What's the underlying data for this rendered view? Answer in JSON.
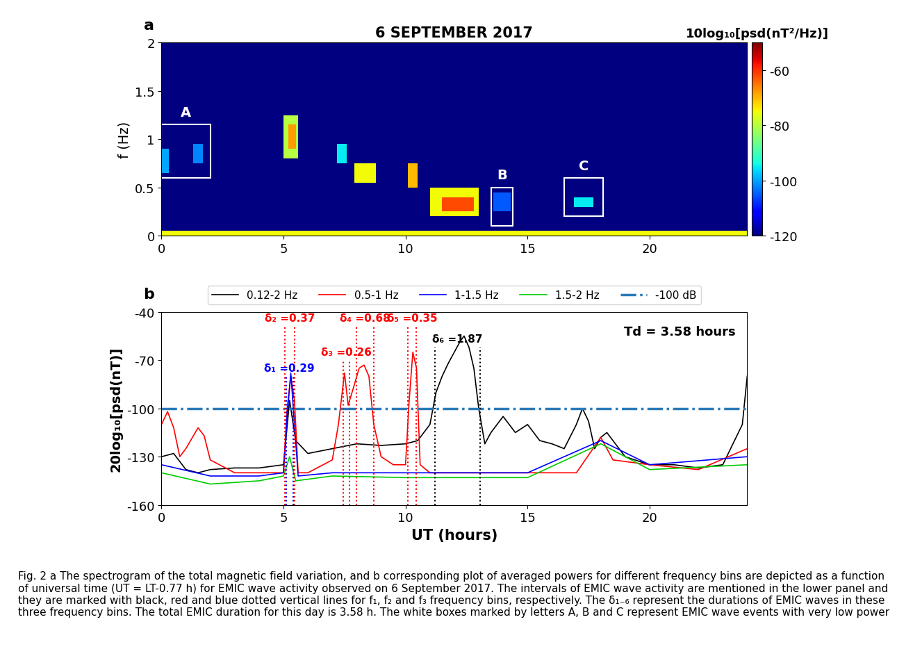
{
  "chart_data": [
    {
      "type": "heatmap",
      "panel": "a",
      "title": "6 SEPTEMBER 2017",
      "y_label": "f (Hz)",
      "xlim": [
        0,
        24
      ],
      "xticks": [
        0,
        5,
        10,
        15,
        20
      ],
      "ylim": [
        0,
        2
      ],
      "yticks": [
        0,
        0.5,
        1,
        1.5,
        2
      ],
      "background": -120,
      "cells": [
        [
          0,
          24,
          0,
          0.05,
          -75
        ],
        [
          0,
          0.3,
          0.65,
          0.9,
          -100
        ],
        [
          1.3,
          1.7,
          0.75,
          0.95,
          -102
        ],
        [
          5.0,
          5.6,
          0.8,
          1.25,
          -80
        ],
        [
          5.2,
          5.5,
          0.9,
          1.15,
          -68
        ],
        [
          7.2,
          7.6,
          0.75,
          0.95,
          -95
        ],
        [
          7.9,
          8.8,
          0.55,
          0.75,
          -75
        ],
        [
          10.1,
          10.5,
          0.5,
          0.75,
          -70
        ],
        [
          11.0,
          13.0,
          0.2,
          0.5,
          -75
        ],
        [
          11.5,
          12.8,
          0.25,
          0.4,
          -62
        ],
        [
          13.6,
          14.3,
          0.25,
          0.45,
          -105
        ],
        [
          16.9,
          17.7,
          0.3,
          0.4,
          -95
        ]
      ],
      "boxes": [
        {
          "label": "A",
          "x": [
            0,
            2
          ],
          "y": [
            0.6,
            1.15
          ]
        },
        {
          "label": "B",
          "x": [
            13.5,
            14.4
          ],
          "y": [
            0.1,
            0.5
          ]
        },
        {
          "label": "C",
          "x": [
            16.5,
            18.1
          ],
          "y": [
            0.2,
            0.6
          ]
        }
      ],
      "colorbar": {
        "label": "10log₁₀[psd(nT²/Hz)]",
        "range": [
          -120,
          -50
        ],
        "ticks": [
          -60,
          -80,
          -100,
          -120
        ]
      }
    },
    {
      "type": "line",
      "panel": "b",
      "x_label": "UT (hours)",
      "y_label": "20log₁₀[psd(nT)]",
      "xlim": [
        0,
        24
      ],
      "xticks": [
        0,
        5,
        10,
        15,
        20
      ],
      "ylim": [
        -160,
        -40
      ],
      "yticks": [
        -160,
        -130,
        -100,
        -70,
        -40
      ],
      "legend": "lower center",
      "series": [
        {
          "name": "0.12-2 Hz",
          "color": "#000000",
          "x": [
            0,
            0.5,
            1,
            1.5,
            2,
            3,
            4,
            5,
            5.25,
            5.5,
            6,
            7,
            8,
            9,
            10,
            10.5,
            11,
            11.25,
            11.5,
            11.75,
            12,
            12.25,
            12.4,
            12.6,
            12.8,
            13,
            13.25,
            13.5,
            14,
            14.5,
            15,
            15.5,
            16,
            16.5,
            17,
            17.25,
            17.5,
            17.75,
            18,
            18.25,
            19,
            20,
            21,
            22,
            23,
            23.8,
            24
          ],
          "values": [
            -130,
            -128,
            -138,
            -140,
            -138,
            -137,
            -137,
            -135,
            -95,
            -120,
            -128,
            -125,
            -122,
            -123,
            -122,
            -120,
            -110,
            -90,
            -80,
            -72,
            -65,
            -58,
            -55,
            -62,
            -75,
            -100,
            -122,
            -115,
            -105,
            -115,
            -110,
            -120,
            -122,
            -125,
            -110,
            -100,
            -108,
            -125,
            -118,
            -115,
            -130,
            -135,
            -135,
            -137,
            -135,
            -110,
            -80
          ]
        },
        {
          "name": "0.5-1 Hz",
          "color": "#ff0000",
          "x": [
            0,
            0.25,
            0.5,
            0.75,
            1,
            1.5,
            1.75,
            2,
            3,
            4,
            5,
            5.15,
            5.3,
            5.45,
            5.6,
            6,
            7,
            7.25,
            7.5,
            7.65,
            7.85,
            8.1,
            8.3,
            8.5,
            8.7,
            9,
            9.5,
            10,
            10.15,
            10.3,
            10.45,
            10.6,
            11,
            13,
            15,
            17,
            18,
            18.5,
            20,
            22,
            24
          ],
          "values": [
            -110,
            -102,
            -112,
            -130,
            -125,
            -112,
            -117,
            -132,
            -140,
            -140,
            -140,
            -100,
            -80,
            -95,
            -140,
            -140,
            -132,
            -110,
            -78,
            -98,
            -88,
            -75,
            -73,
            -80,
            -110,
            -130,
            -135,
            -135,
            -95,
            -65,
            -75,
            -135,
            -140,
            -140,
            -140,
            -140,
            -118,
            -132,
            -135,
            -138,
            -125
          ]
        },
        {
          "name": "1-1.5 Hz",
          "color": "#0000ff",
          "x": [
            0,
            2,
            4,
            5,
            5.15,
            5.3,
            5.45,
            5.6,
            7,
            10,
            15,
            18,
            20,
            24
          ],
          "values": [
            -135,
            -142,
            -142,
            -140,
            -105,
            -78,
            -110,
            -142,
            -140,
            -140,
            -140,
            -120,
            -135,
            -130
          ]
        },
        {
          "name": "1.5-2 Hz",
          "color": "#00cc00",
          "x": [
            0,
            2,
            4,
            5,
            5.25,
            5.5,
            7,
            10,
            15,
            18,
            20,
            24
          ],
          "values": [
            -140,
            -147,
            -145,
            -142,
            -130,
            -145,
            -142,
            -143,
            -143,
            -122,
            -138,
            -135
          ]
        }
      ],
      "reference_lines": [
        {
          "name": "-100 dB",
          "value": -100,
          "color": "#2a7ab9",
          "line_style": "dashdot"
        }
      ],
      "intervals": [
        {
          "start": 5.1,
          "end": 5.4,
          "color": "#0000ff",
          "label": "δ₁ =0.29"
        },
        {
          "start": 5.05,
          "end": 5.45,
          "color": "#ff0000",
          "label": "δ₂ =0.37"
        },
        {
          "start": 7.45,
          "end": 7.7,
          "color": "#ff0000",
          "label": "δ₃ =0.26"
        },
        {
          "start": 8.0,
          "end": 8.7,
          "color": "#ff0000",
          "label": "δ₄ =0.68"
        },
        {
          "start": 10.1,
          "end": 10.45,
          "color": "#ff0000",
          "label": "δ₅ =0.35"
        },
        {
          "start": 11.2,
          "end": 13.05,
          "color": "#000000",
          "label": "δ₆ =1.87"
        }
      ],
      "annotation": "Td = 3.58 hours"
    }
  ],
  "caption": "Fig. 2 a The spectrogram of the total magnetic field variation, and b corresponding plot of averaged powers for different frequency bins are depicted as a function of universal time (UT = LT-0.77 h) for EMIC wave activity observed on 6 September 2017. The intervals of EMIC wave activity are mentioned in the lower panel and they are marked with black, red and blue dotted vertical lines for f₁, f₂ and f₃ frequency bins, respectively. The δ₁₋₆ represent the durations of EMIC waves in these three frequency bins. The total EMIC duration for this day is 3.58 h. The white boxes marked by letters A, B and C represent EMIC wave events with very low power"
}
